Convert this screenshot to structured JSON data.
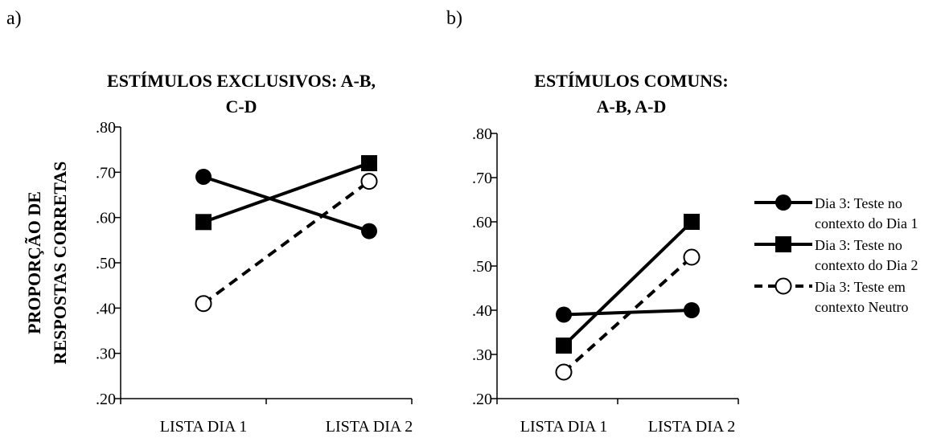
{
  "chart_data": [
    {
      "panel_label": "a)",
      "type": "line",
      "title": "ESTÍMULOS EXCLUSIVOS: A-B, C-D",
      "title_lines": [
        "ESTÍMULOS EXCLUSIVOS: A-B,",
        "C-D"
      ],
      "ylabel": "PROPORÇÃO DE RESPOSTAS CORRETAS",
      "ylabel_lines": [
        "PROPORÇÃO DE",
        "RESPOSTAS CORRETAS"
      ],
      "xlabel": "",
      "categories": [
        "LISTA DIA 1",
        "LISTA DIA 2"
      ],
      "ylim": [
        0.2,
        0.8
      ],
      "yticks": [
        ".80",
        ".70",
        ".60",
        ".50",
        ".40",
        ".30",
        ".20"
      ],
      "grid": false,
      "series": [
        {
          "name": "Dia 3: Teste no contexto do Dia 1",
          "values": [
            0.69,
            0.57
          ]
        },
        {
          "name": "Dia 3: Teste no contexto do Dia 2",
          "values": [
            0.59,
            0.72
          ]
        },
        {
          "name": "Dia 3: Teste em contexto Neutro",
          "values": [
            0.41,
            0.68
          ]
        }
      ]
    },
    {
      "panel_label": "b)",
      "type": "line",
      "title": "ESTÍMULOS COMUNS: A-B, A-D",
      "title_lines": [
        "ESTÍMULOS COMUNS:",
        "A-B, A-D"
      ],
      "xlabel": "",
      "ylabel": "",
      "categories": [
        "LISTA DIA 1",
        "LISTA DIA 2"
      ],
      "ylim": [
        0.2,
        0.8
      ],
      "yticks": [
        ".80",
        ".70",
        ".60",
        ".50",
        ".40",
        ".30",
        ".20"
      ],
      "grid": false,
      "legend_position": "right",
      "series": [
        {
          "name": "Dia 3: Teste no contexto do Dia 1",
          "values": [
            0.39,
            0.4
          ]
        },
        {
          "name": "Dia 3: Teste no contexto do Dia 2",
          "values": [
            0.32,
            0.6
          ]
        },
        {
          "name": "Dia 3: Teste em contexto Neutro",
          "values": [
            0.26,
            0.52
          ]
        }
      ]
    }
  ],
  "legend": [
    {
      "lines": [
        "Dia 3: Teste no",
        "contexto do Dia 1"
      ],
      "marker": "circle-filled",
      "style": "solid"
    },
    {
      "lines": [
        "Dia 3: Teste no",
        "contexto do Dia 2"
      ],
      "marker": "square-filled",
      "style": "solid"
    },
    {
      "lines": [
        "Dia 3: Teste em",
        "contexto Neutro"
      ],
      "marker": "circle-open",
      "style": "dashed"
    }
  ],
  "colors": {
    "line": "#000000",
    "background": "#ffffff"
  }
}
